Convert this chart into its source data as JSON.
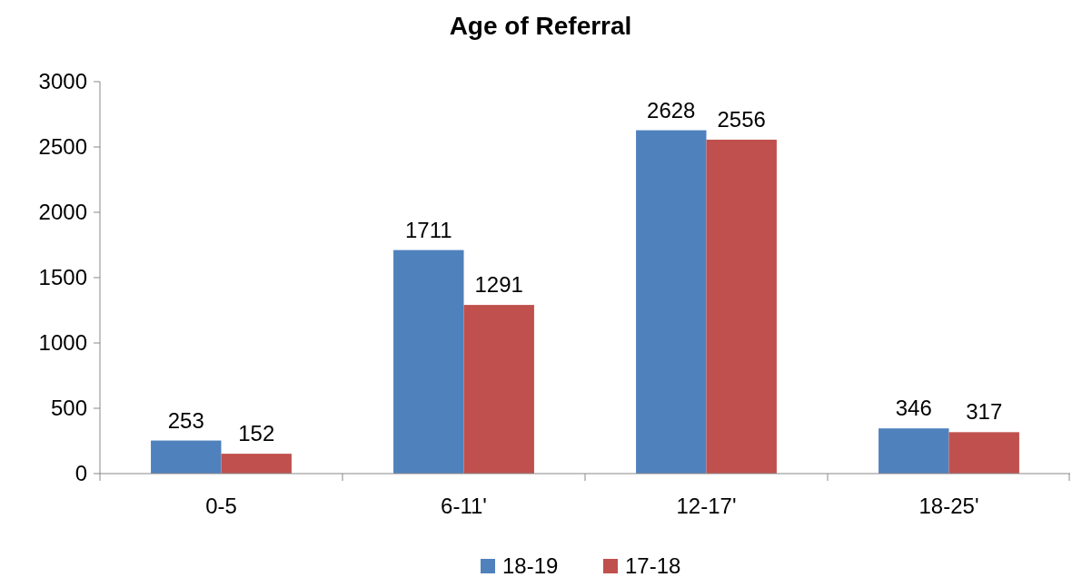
{
  "chart_data": {
    "type": "bar",
    "title": "Age of Referral",
    "categories": [
      "0-5",
      "6-11'",
      "12-17'",
      "18-25'"
    ],
    "series": [
      {
        "name": "18-19",
        "color": "#4f81bd",
        "values": [
          253,
          1711,
          2628,
          346
        ]
      },
      {
        "name": "17-18",
        "color": "#c0504d",
        "values": [
          152,
          1291,
          2556,
          317
        ]
      }
    ],
    "ylim": [
      0,
      3000
    ],
    "yticks": [
      0,
      500,
      1000,
      1500,
      2000,
      2500,
      3000
    ],
    "data_labels": true,
    "legend": "bottom",
    "grid": false
  }
}
